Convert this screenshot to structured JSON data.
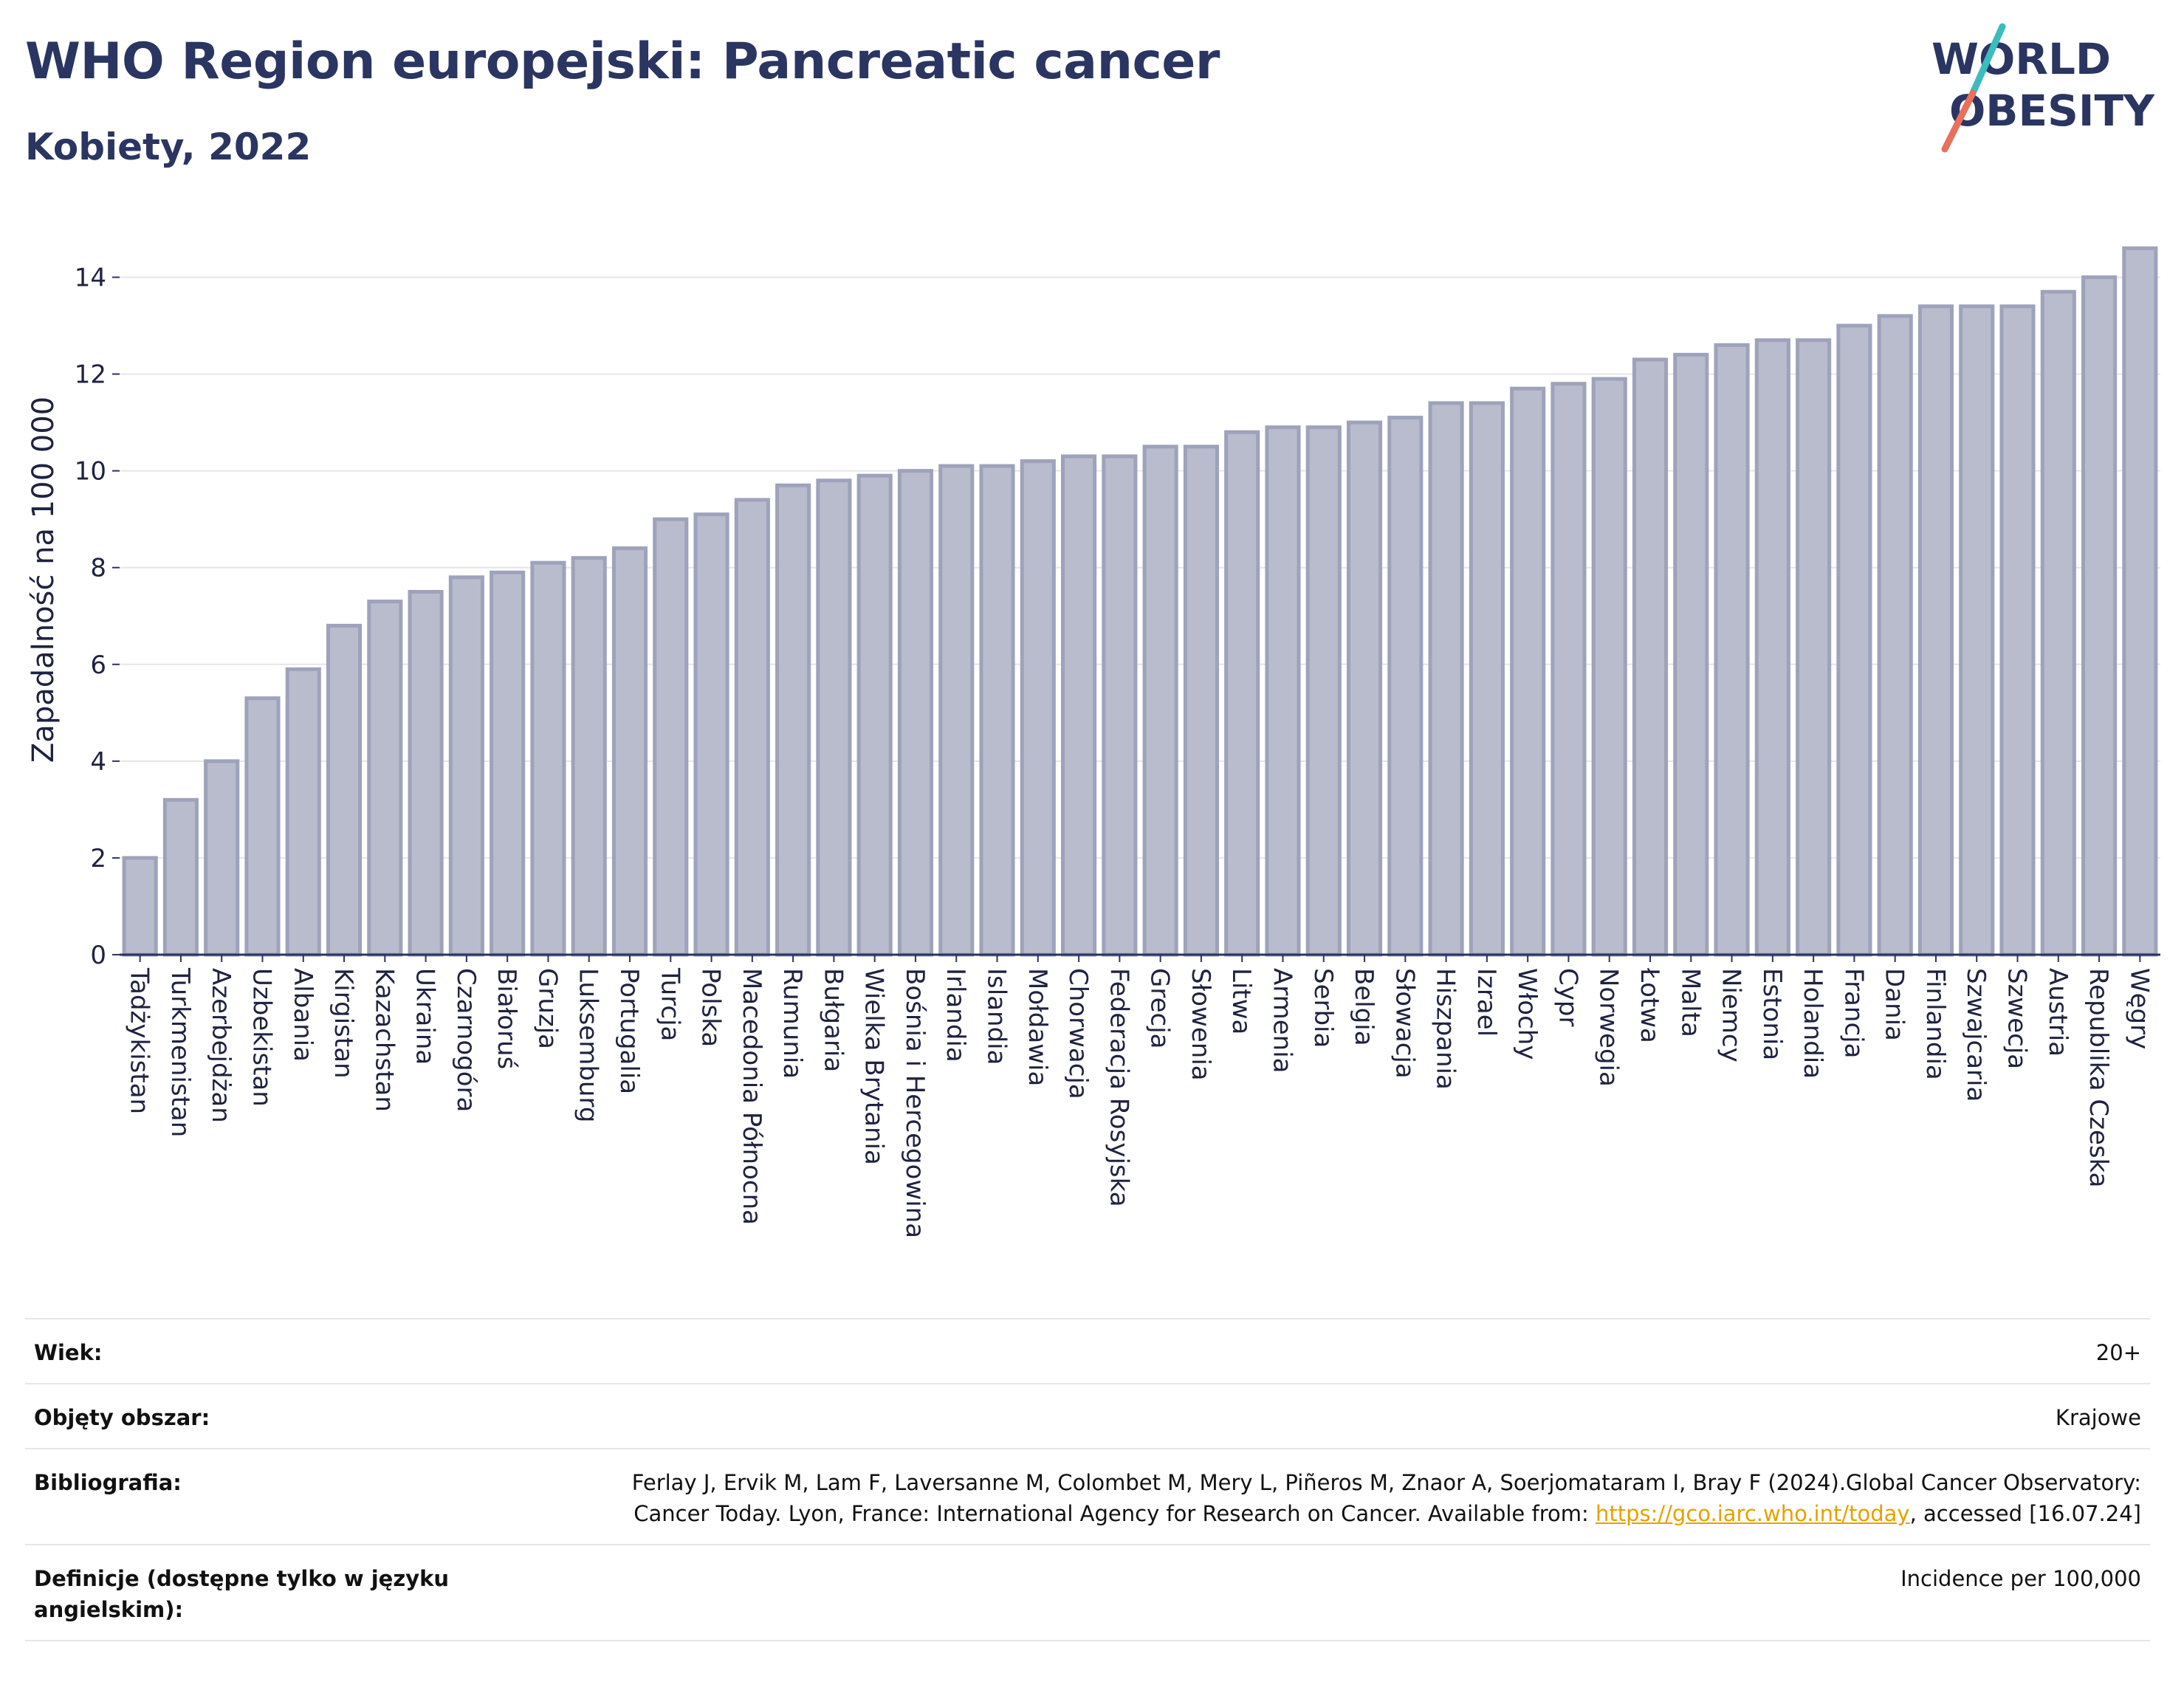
{
  "header": {
    "title": "WHO Region europejski: Pancreatic cancer",
    "subtitle": "Kobiety, 2022"
  },
  "logo": {
    "line1": "WORLD",
    "line2": "OBESITY"
  },
  "chart_data": {
    "type": "bar",
    "ylabel": "Zapadalność na 100 000",
    "xlabel": "",
    "ylim": [
      0,
      15
    ],
    "yticks": [
      0,
      2,
      4,
      6,
      8,
      10,
      12,
      14
    ],
    "grid": true,
    "bar_color": "#b9bccd",
    "bar_edge_color": "#9ea2ba",
    "categories": [
      "Tadżykistan",
      "Turkmenistan",
      "Azerbejdżan",
      "Uzbekistan",
      "Albania",
      "Kirgistan",
      "Kazachstan",
      "Ukraina",
      "Czarnogóra",
      "Białoruś",
      "Gruzja",
      "Luksemburg",
      "Portugalia",
      "Turcja",
      "Polska",
      "Macedonia Północna",
      "Rumunia",
      "Bułgaria",
      "Wielka Brytania",
      "Bośnia i Hercegowina",
      "Irlandia",
      "Islandia",
      "Mołdawia",
      "Chorwacja",
      "Federacja Rosyjska",
      "Grecja",
      "Słowenia",
      "Litwa",
      "Armenia",
      "Serbia",
      "Belgia",
      "Słowacja",
      "Hiszpania",
      "Izrael",
      "Włochy",
      "Cypr",
      "Norwegia",
      "Łotwa",
      "Malta",
      "Niemcy",
      "Estonia",
      "Holandia",
      "Francja",
      "Dania",
      "Finlandia",
      "Szwajcaria",
      "Szwecja",
      "Austria",
      "Republika Czeska",
      "Węgry"
    ],
    "values": [
      2.0,
      3.2,
      4.0,
      5.3,
      5.9,
      6.8,
      7.3,
      7.5,
      7.8,
      7.9,
      8.1,
      8.2,
      8.4,
      9.0,
      9.1,
      9.4,
      9.7,
      9.8,
      9.9,
      10.0,
      10.1,
      10.1,
      10.2,
      10.3,
      10.3,
      10.5,
      10.5,
      10.8,
      10.9,
      10.9,
      11.0,
      11.1,
      11.4,
      11.4,
      11.7,
      11.8,
      11.9,
      12.3,
      12.4,
      12.6,
      12.7,
      12.7,
      13.0,
      13.2,
      13.4,
      13.4,
      13.4,
      13.7,
      14.0,
      14.6
    ]
  },
  "info": {
    "age_label": "Wiek:",
    "age_value": "20+",
    "coverage_label": "Objęty obszar:",
    "coverage_value": "Krajowe",
    "biblio_label": "Bibliografia:",
    "biblio_text": "Ferlay J, Ervik M, Lam F, Laversanne M, Colombet M, Mery L, Piñeros M, Znaor A, Soerjomataram I, Bray F (2024).Global Cancer Observatory: Cancer Today. Lyon, France: International Agency for Research on Cancer. Available from: ",
    "biblio_link": "https://gco.iarc.who.int/today",
    "biblio_suffix": ", accessed [16.07.24]",
    "def_label": "Definicje (dostępne tylko w języku angielskim):",
    "def_value": "Incidence per 100,000"
  }
}
